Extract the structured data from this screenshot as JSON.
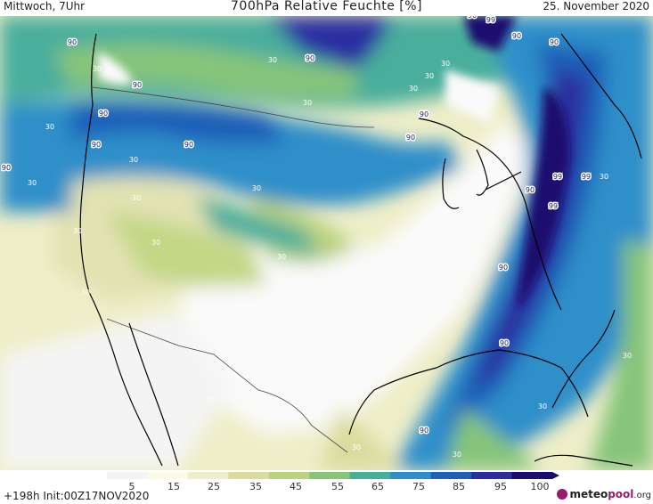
{
  "header": {
    "day_time": "Mittwoch, 7Uhr",
    "title": "700hPa Relative Feuchte [%]",
    "date": "25. November 2020"
  },
  "map": {
    "map_labels": [
      {
        "text": "90"
      },
      {
        "text": "90"
      },
      {
        "text": "90"
      },
      {
        "text": "90"
      },
      {
        "text": "90"
      },
      {
        "text": "90"
      },
      {
        "text": "90"
      },
      {
        "text": "90"
      },
      {
        "text": "90"
      },
      {
        "text": "90"
      },
      {
        "text": "90"
      },
      {
        "text": "90"
      },
      {
        "text": "90"
      },
      {
        "text": "90"
      },
      {
        "text": "90"
      },
      {
        "text": "90"
      },
      {
        "text": "99"
      },
      {
        "text": "99"
      },
      {
        "text": "99"
      },
      {
        "text": "99"
      },
      {
        "text": "30"
      },
      {
        "text": "30"
      },
      {
        "text": "30"
      },
      {
        "text": "30"
      },
      {
        "text": "30"
      },
      {
        "text": "30"
      },
      {
        "text": "30"
      },
      {
        "text": "30"
      },
      {
        "text": "30"
      },
      {
        "text": "30"
      },
      {
        "text": "30"
      },
      {
        "text": "30"
      },
      {
        "text": "30"
      },
      {
        "text": "30"
      },
      {
        "text": "30"
      },
      {
        "text": "30"
      },
      {
        "text": "30"
      },
      {
        "text": "30"
      },
      {
        "text": "30"
      },
      {
        "text": "30"
      },
      {
        "text": "30"
      }
    ]
  },
  "legend": {
    "ticks": [
      "5",
      "15",
      "25",
      "35",
      "45",
      "55",
      "65",
      "75",
      "85",
      "95",
      "100"
    ],
    "colors": [
      "#f4f4f4",
      "#fbfbe6",
      "#eeeec8",
      "#dadc9e",
      "#b9d27f",
      "#86c57a",
      "#48ae9c",
      "#2e8fc9",
      "#1f5fb8",
      "#2a2ea0",
      "#1d0a6e"
    ]
  },
  "footer": {
    "run_info": "+198h  Init:00Z17NOV2020",
    "logo_main": "meteo",
    "logo_accent": "pool",
    "logo_suffix": ".org"
  }
}
